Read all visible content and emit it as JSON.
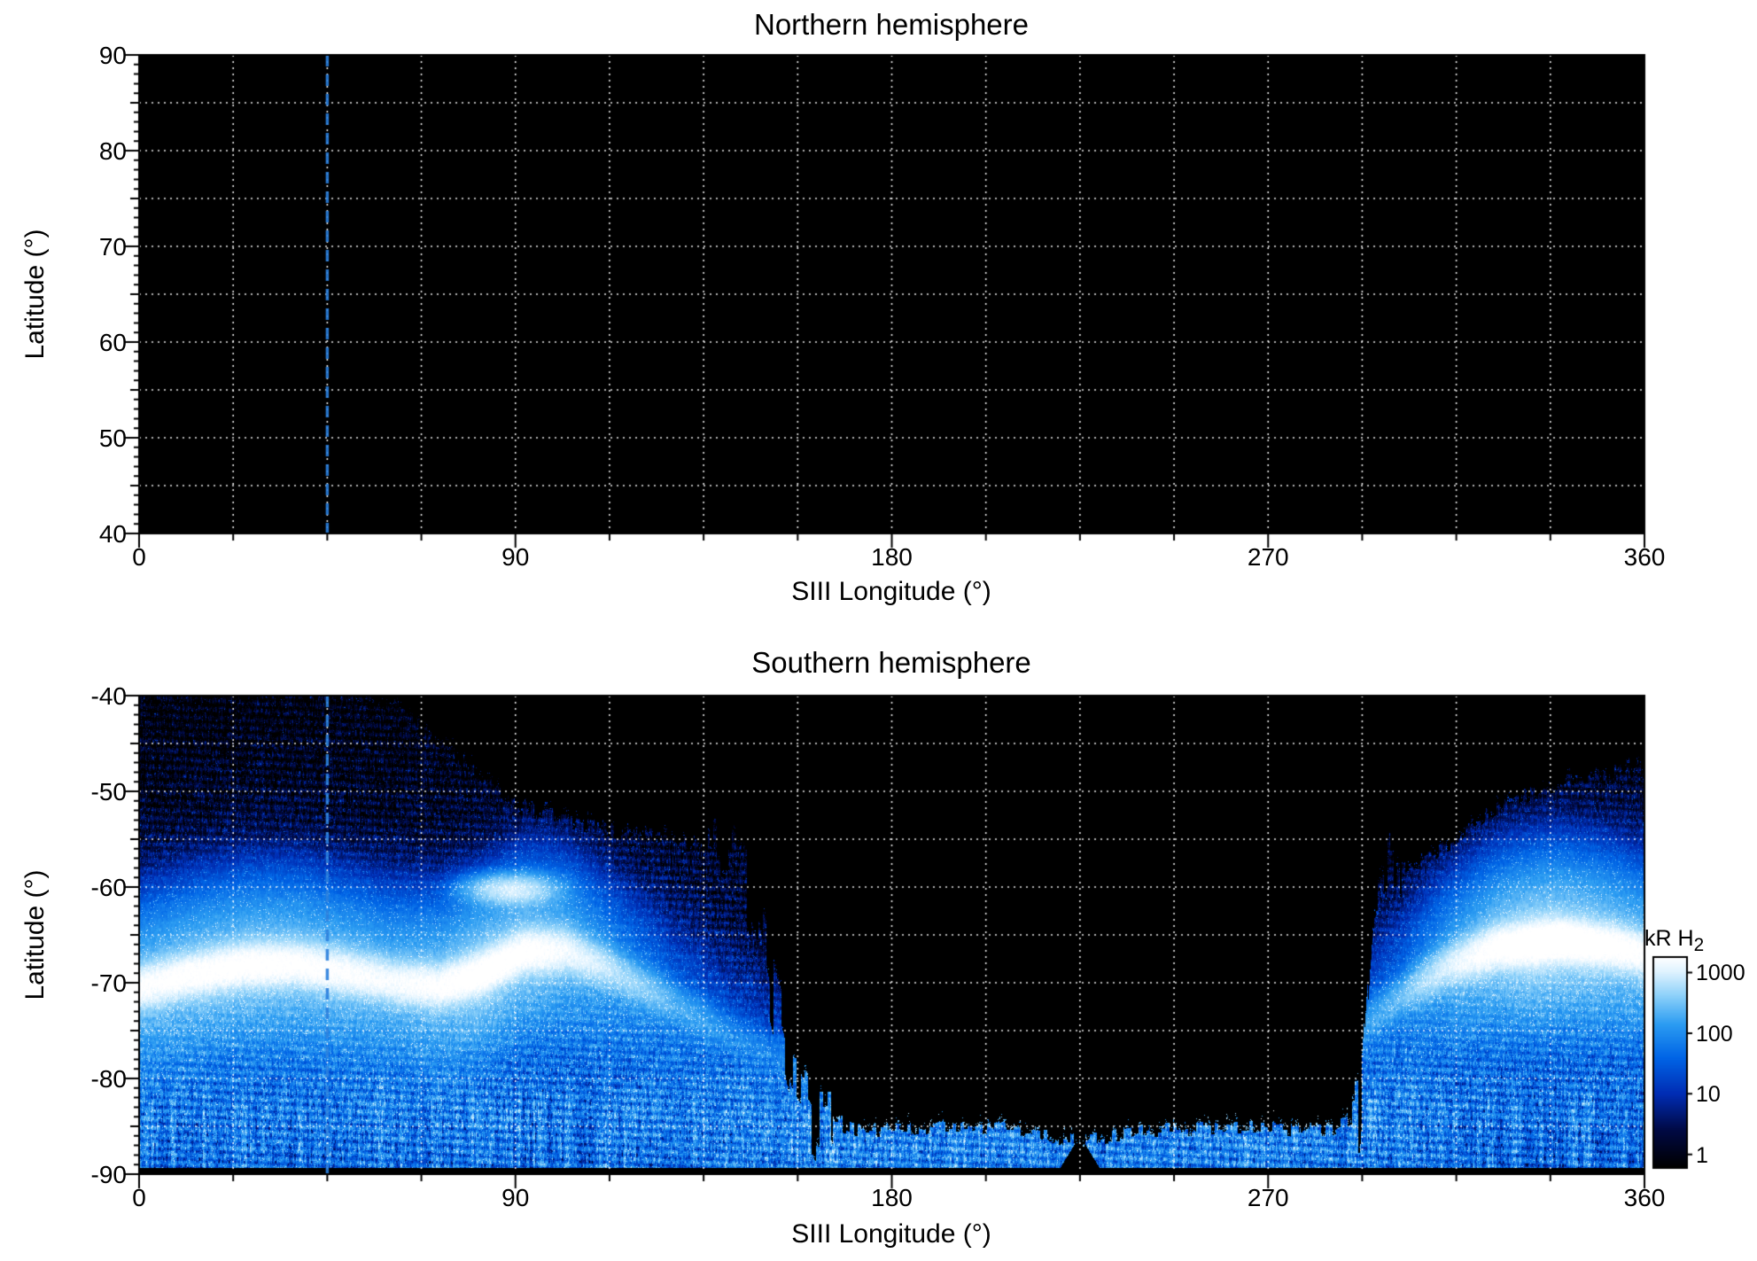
{
  "page": {
    "background": "#ffffff",
    "plot_background": "#000000"
  },
  "chart_data": [
    {
      "type": "heatmap",
      "title": "Northern hemisphere",
      "xlabel": "SIII Longitude (°)",
      "ylabel": "Latitude (°)",
      "xlim": [
        0,
        360
      ],
      "ylim": [
        40,
        90
      ],
      "x_ticks": [
        0,
        90,
        180,
        270,
        360
      ],
      "y_ticks": [
        90,
        80,
        70,
        60,
        50,
        40
      ],
      "grid": {
        "on": true,
        "x_step_deg": 22.5,
        "y_step_deg": 5,
        "style": "dotted",
        "color": "#ffffff"
      },
      "plot_background": "#000000",
      "marker_longitude_deg": 45,
      "marker_style": {
        "color": "#2a7fdd",
        "dashed": true
      },
      "coverage": "none (panel entirely black, no emission data)"
    },
    {
      "type": "heatmap",
      "title": "Southern hemisphere",
      "xlabel": "SIII Longitude (°)",
      "ylabel": "Latitude (°)",
      "xlim": [
        0,
        360
      ],
      "ylim": [
        -90,
        -40
      ],
      "x_ticks": [
        0,
        90,
        180,
        270,
        360
      ],
      "y_ticks": [
        -40,
        -50,
        -60,
        -70,
        -80,
        -90
      ],
      "grid": {
        "on": true,
        "x_step_deg": 22.5,
        "y_step_deg": 5,
        "style": "dotted",
        "color": "#ffffff"
      },
      "plot_background": "#000000",
      "marker_longitude_deg": 45,
      "marker_style": {
        "color": "#2a7fdd",
        "dashed": true
      },
      "colorbar": {
        "label": "kR H",
        "label_sub": "2",
        "ticks": [
          1000,
          100,
          10,
          1
        ],
        "scale": "log",
        "value_range": [
          0.6,
          1800
        ]
      },
      "colormap_stops": [
        [
          0.0,
          "#000000"
        ],
        [
          0.18,
          "#000a46"
        ],
        [
          0.35,
          "#002db4"
        ],
        [
          0.52,
          "#0064e6"
        ],
        [
          0.68,
          "#2b9cf2"
        ],
        [
          0.82,
          "#8fd2fa"
        ],
        [
          0.93,
          "#dff3ff"
        ],
        [
          1.0,
          "#ffffff"
        ]
      ],
      "auroral_model": {
        "oval_centerline_lat_by_lon": [
          [
            0,
            -70.5
          ],
          [
            12,
            -69.2
          ],
          [
            25,
            -68.2
          ],
          [
            38,
            -68.1
          ],
          [
            50,
            -69
          ],
          [
            62,
            -70
          ],
          [
            72,
            -70.4
          ],
          [
            82,
            -69
          ],
          [
            92,
            -66.8
          ],
          [
            102,
            -66.7
          ],
          [
            112,
            -68.5
          ],
          [
            125,
            -71.5
          ],
          [
            140,
            -75
          ],
          [
            160,
            -79
          ],
          [
            200,
            -81
          ],
          [
            250,
            -81
          ],
          [
            285,
            -77
          ],
          [
            300,
            -72
          ],
          [
            312,
            -68.5
          ],
          [
            325,
            -66.3
          ],
          [
            340,
            -65.6
          ],
          [
            352,
            -66.2
          ],
          [
            360,
            -67
          ]
        ],
        "oval_peak_kR_by_lon": [
          [
            0,
            850
          ],
          [
            15,
            1000
          ],
          [
            30,
            1050
          ],
          [
            45,
            900
          ],
          [
            60,
            750
          ],
          [
            72,
            900
          ],
          [
            82,
            1200
          ],
          [
            95,
            1000
          ],
          [
            105,
            600
          ],
          [
            115,
            300
          ],
          [
            128,
            120
          ],
          [
            142,
            50
          ],
          [
            170,
            25
          ],
          [
            250,
            25
          ],
          [
            290,
            60
          ],
          [
            302,
            150
          ],
          [
            312,
            450
          ],
          [
            322,
            950
          ],
          [
            334,
            1500
          ],
          [
            346,
            1300
          ],
          [
            356,
            1000
          ],
          [
            360,
            900
          ]
        ],
        "secondary_arc": {
          "lon_center": 89,
          "lon_sigma": 6,
          "lat_center": -60.3,
          "lat_sigma": 0.9,
          "peak_kR": 520
        },
        "coverage_top_lat_by_lon": [
          [
            0,
            -40
          ],
          [
            52,
            -40
          ],
          [
            62,
            -41.5
          ],
          [
            75,
            -46
          ],
          [
            90,
            -51.5
          ],
          [
            105,
            -53.5
          ],
          [
            125,
            -55
          ],
          [
            138,
            -56
          ],
          [
            144,
            -58
          ],
          [
            150,
            -68
          ],
          [
            156,
            -80
          ],
          [
            162,
            -84.5
          ],
          [
            175,
            -85.5
          ],
          [
            205,
            -85
          ],
          [
            218,
            -86
          ],
          [
            226,
            -86.5
          ],
          [
            240,
            -85.5
          ],
          [
            268,
            -85
          ],
          [
            285,
            -85.5
          ],
          [
            292,
            -84
          ],
          [
            295,
            -62
          ],
          [
            299,
            -58
          ],
          [
            306,
            -57.5
          ],
          [
            314,
            -55.5
          ],
          [
            326,
            -51.5
          ],
          [
            342,
            -49
          ],
          [
            360,
            -47.5
          ]
        ],
        "polar_cap_black_band_lat": -89.35,
        "coverage_gap_wedge_lon": 225
      }
    }
  ]
}
